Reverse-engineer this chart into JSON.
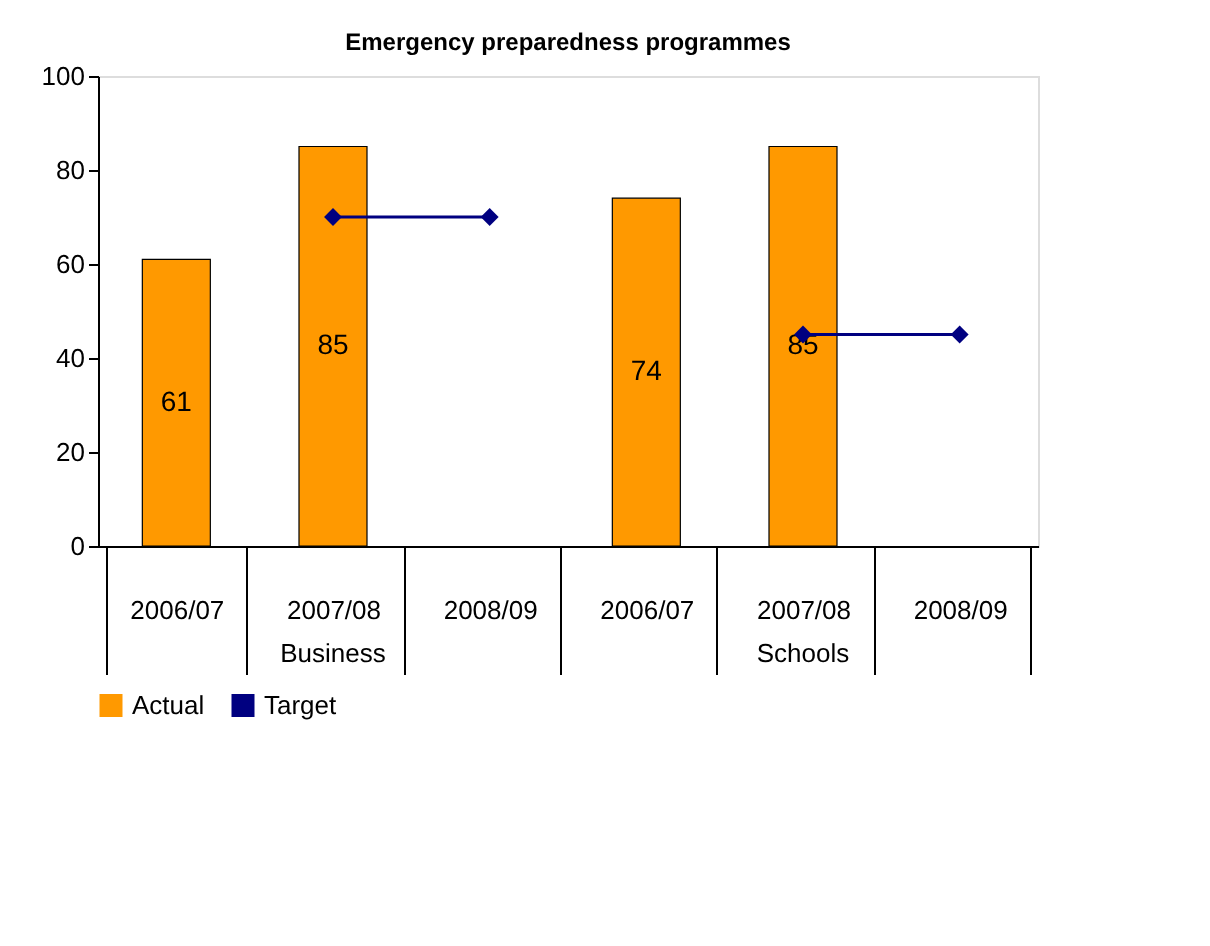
{
  "chart_data": {
    "type": "bar",
    "title": "Emergency preparedness programmes",
    "categories": [
      "2006/07",
      "2007/08",
      "2008/09",
      "2006/07",
      "2007/08",
      "2008/09"
    ],
    "series": [
      {
        "name": "Actual",
        "color": "#ff9900",
        "values": [
          61,
          85,
          null,
          74,
          85,
          null
        ],
        "value_labels": [
          "61",
          "85",
          null,
          "74",
          "85",
          null
        ]
      },
      {
        "name": "Target",
        "type": "line",
        "color": "#000080",
        "marker": "diamond",
        "values": [
          null,
          70,
          70,
          null,
          45,
          45
        ]
      }
    ],
    "annotations": [
      "Business",
      "Schools"
    ],
    "ylim": [
      0,
      100
    ],
    "yticks": [
      0,
      20,
      40,
      60,
      80,
      100
    ],
    "grid": false,
    "legend": "bottom"
  }
}
